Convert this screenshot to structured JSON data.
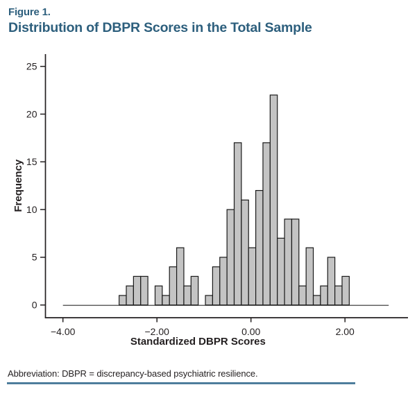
{
  "figure": {
    "label": "Figure 1.",
    "title": "Distribution of DBPR Scores in the Total Sample"
  },
  "footer": {
    "text": "Abbreviation: DBPR = discrepancy-based psychiatric resilience."
  },
  "colors": {
    "title_blue": "#2d5f7d",
    "footer_rule": "#4e7d9c",
    "axis": "#231f20",
    "tick_text": "#231f20",
    "bar_fill": "#c4c4c4",
    "bar_stroke": "#1a1a1a",
    "baseline": "#2b2b2b"
  },
  "chart_data": {
    "type": "histogram",
    "title": "",
    "xlabel": "Standardized DBPR Scores",
    "ylabel": "Frequency",
    "x_ticks": [
      {
        "value": -4,
        "label": "−4.00"
      },
      {
        "value": -2,
        "label": "−2.00"
      },
      {
        "value": 0,
        "label": "0.00"
      },
      {
        "value": 2,
        "label": "2.00"
      }
    ],
    "y_ticks": [
      0,
      5,
      10,
      15,
      20,
      25
    ],
    "xlim": [
      -4.38,
      3.34
    ],
    "ylim": [
      0,
      26.2
    ],
    "grid": false,
    "legend": "none",
    "bin_start": -2.805,
    "bin_width": 0.153,
    "frequencies": [
      1,
      2,
      3,
      3,
      0,
      2,
      1,
      4,
      6,
      2,
      3,
      0,
      1,
      4,
      5,
      10,
      17,
      11,
      6,
      12,
      17,
      22,
      7,
      9,
      9,
      2,
      6,
      1,
      2,
      5,
      2,
      3
    ],
    "baseline_extent": [
      -4.0,
      2.93
    ]
  }
}
